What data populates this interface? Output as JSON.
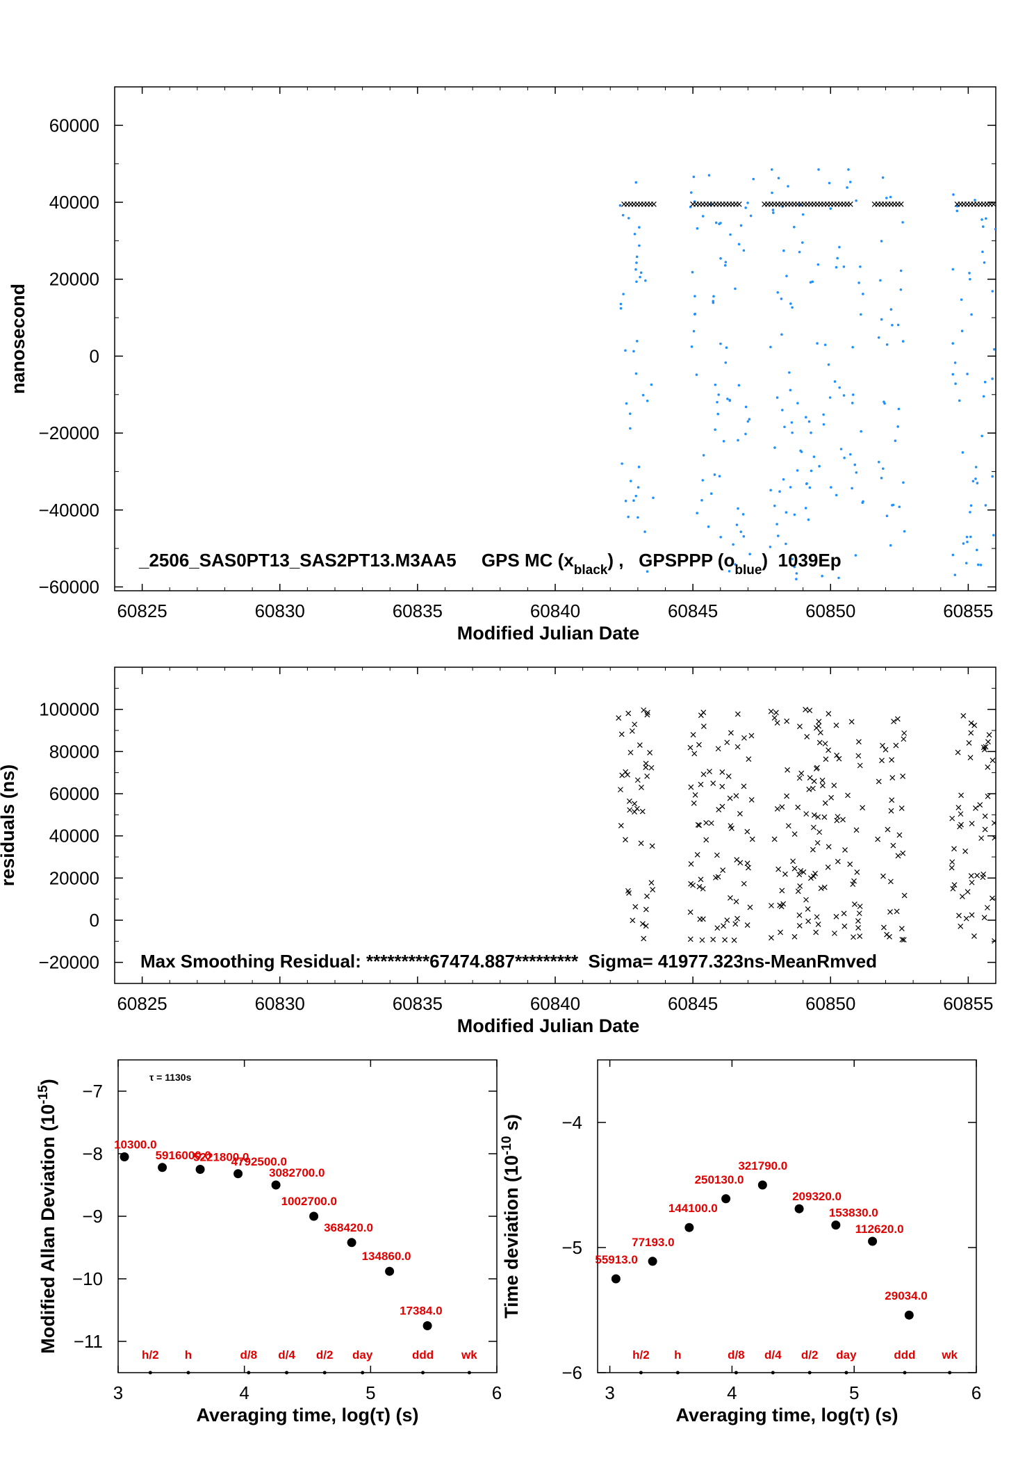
{
  "chart_data": [
    {
      "type": "scatter",
      "ylabel": "nanosecond",
      "xlabel": "Modified Julian Date",
      "xlim": [
        60824,
        60856
      ],
      "ylim": [
        -61000,
        70000
      ],
      "xticks": [
        60825,
        60830,
        60835,
        60840,
        60845,
        60850,
        60855
      ],
      "yticks": [
        -60000,
        -40000,
        -20000,
        0,
        20000,
        40000,
        60000
      ],
      "xtick_labels": [
        "60825",
        "60830",
        "60835",
        "60840",
        "60845",
        "60850",
        "60855"
      ],
      "ytick_labels": [
        "−60000",
        "−40000",
        "−20000",
        "0",
        "20000",
        "40000",
        "60000"
      ],
      "annotation": {
        "station": "_2506_SAS0PT13_SAS2PT13.M3AA5",
        "gps_mc_pre": "GPS MC (x",
        "gps_mc_sub": "black",
        "gps_mc_post": ") ,",
        "gpsppp_pre": "GPSPPP (o",
        "gpsppp_sub": "blue",
        "gpsppp_post": ")",
        "epochs": "1039Ep"
      },
      "series": [
        {
          "name": "GPS MC",
          "marker": "x",
          "color": "#000000",
          "y_constant": 39500,
          "x_ranges": [
            [
              60842.5,
              60843.6
            ],
            [
              60845.0,
              60846.8
            ],
            [
              60847.6,
              60850.8
            ],
            [
              60851.6,
              60852.6
            ],
            [
              60854.6,
              60856.0
            ]
          ]
        },
        {
          "name": "GPSPPP",
          "marker": "o",
          "color": "#1e90ff",
          "x_ranges": [
            [
              60842.3,
              60843.6
            ],
            [
              60844.9,
              60847.2
            ],
            [
              60847.8,
              60851.2
            ],
            [
              60851.7,
              60852.7
            ],
            [
              60854.4,
              60856.0
            ]
          ],
          "y_range": [
            -58000,
            49000
          ]
        }
      ]
    },
    {
      "type": "scatter",
      "ylabel": "residuals (ns)",
      "xlabel": "Modified Julian Date",
      "xlim": [
        60824,
        60856
      ],
      "ylim": [
        -30000,
        120000
      ],
      "xticks": [
        60825,
        60830,
        60835,
        60840,
        60845,
        60850,
        60855
      ],
      "yticks": [
        -20000,
        0,
        20000,
        40000,
        60000,
        80000,
        100000
      ],
      "xtick_labels": [
        "60825",
        "60830",
        "60835",
        "60840",
        "60845",
        "60850",
        "60855"
      ],
      "ytick_labels": [
        "−20000",
        "0",
        "20000",
        "40000",
        "60000",
        "80000",
        "100000"
      ],
      "annotation": "Max Smoothing Residual: *********67474.887*********  Sigma= 41977.323ns-MeanRmved",
      "series": [
        {
          "name": "residuals",
          "marker": "x",
          "color": "#000000",
          "x_ranges": [
            [
              60842.3,
              60843.6
            ],
            [
              60844.9,
              60847.2
            ],
            [
              60847.8,
              60851.2
            ],
            [
              60851.7,
              60852.7
            ],
            [
              60854.4,
              60856.0
            ]
          ],
          "y_range": [
            -10000,
            100000
          ]
        }
      ]
    },
    {
      "type": "scatter",
      "ylabel": "Modified Allan Deviation (10",
      "ylabel_sup": "-15",
      "ylabel_post": ")",
      "xlabel": "Averaging time, log(τ) (s)",
      "xlim": [
        3,
        6
      ],
      "ylim": [
        -11.5,
        -6.5
      ],
      "xticks": [
        3,
        4,
        5,
        6
      ],
      "yticks": [
        -11,
        -10,
        -9,
        -8,
        -7
      ],
      "xtick_labels": [
        "3",
        "4",
        "5",
        "6"
      ],
      "ytick_labels": [
        "−11",
        "−10",
        "−9",
        "−8",
        "−7"
      ],
      "tau_note": "τ = 1130s",
      "x": [
        3.05,
        3.35,
        3.65,
        3.95,
        4.25,
        4.55,
        4.85,
        5.15,
        5.45
      ],
      "y": [
        -8.05,
        -8.22,
        -8.25,
        -8.32,
        -8.5,
        -9.0,
        -9.42,
        -9.88,
        -10.75
      ],
      "point_labels": [
        "10300.0",
        "5916000.0",
        "5221800.0",
        "4792500.0",
        "3082700.0",
        "1002700.0",
        "368420.0",
        "134860.0",
        "17384.0"
      ],
      "markers": {
        "labels": [
          "h/2",
          "h",
          "d/8",
          "d/4",
          "d/2",
          "day",
          "ddd",
          "wk"
        ],
        "x": [
          3.255,
          3.556,
          4.034,
          4.335,
          4.636,
          4.936,
          5.414,
          5.782
        ]
      }
    },
    {
      "type": "scatter",
      "ylabel": "Time deviation (10",
      "ylabel_sup": "-10",
      "ylabel_post": " s)",
      "xlabel": "Averaging time, log(τ) (s)",
      "xlim": [
        2.9,
        6
      ],
      "ylim": [
        -6,
        -3.5
      ],
      "xticks": [
        3,
        4,
        5,
        6
      ],
      "yticks": [
        -6,
        -5,
        -4
      ],
      "xtick_labels": [
        "3",
        "4",
        "5",
        "6"
      ],
      "ytick_labels": [
        "−6",
        "−5",
        "−4"
      ],
      "x": [
        3.05,
        3.35,
        3.65,
        3.95,
        4.25,
        4.55,
        4.85,
        5.15,
        5.45
      ],
      "y": [
        -5.25,
        -5.11,
        -4.84,
        -4.61,
        -4.5,
        -4.69,
        -4.82,
        -4.95,
        -5.54
      ],
      "point_labels": [
        "55913.0",
        "77193.0",
        "144100.0",
        "250130.0",
        "321790.0",
        "209320.0",
        "153830.0",
        "112620.0",
        "29034.0"
      ],
      "markers": {
        "labels": [
          "h/2",
          "h",
          "d/8",
          "d/4",
          "d/2",
          "day",
          "ddd",
          "wk"
        ],
        "x": [
          3.255,
          3.556,
          4.034,
          4.335,
          4.636,
          4.936,
          5.414,
          5.782
        ]
      }
    }
  ]
}
